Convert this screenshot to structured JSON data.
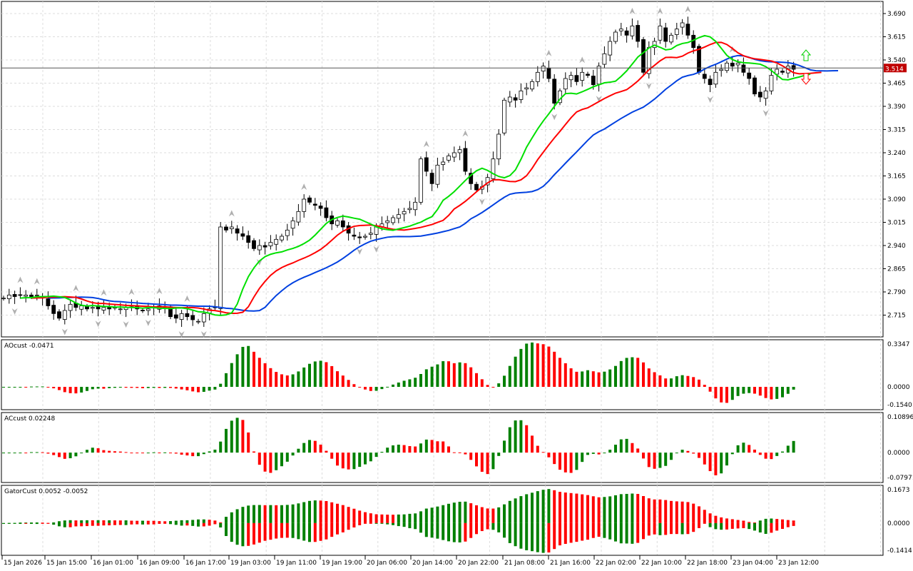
{
  "chart_data": {
    "type": "candlestick",
    "current_price": "3.514",
    "price_axis": [
      "3.690",
      "3.615",
      "3.540",
      "3.465",
      "3.390",
      "3.315",
      "3.240",
      "3.165",
      "3.090",
      "3.015",
      "2.940",
      "2.865",
      "2.790",
      "2.715"
    ],
    "price_range": [
      2.6775,
      3.7275
    ],
    "time_labels": [
      "15 Jan 2026",
      "15 Jan 15:00",
      "16 Jan 01:00",
      "16 Jan 09:00",
      "16 Jan 17:00",
      "19 Jan 03:00",
      "19 Jan 11:00",
      "19 Jan 19:00",
      "20 Jan 06:00",
      "20 Jan 14:00",
      "20 Jan 22:00",
      "21 Jan 08:00",
      "21 Jan 16:00",
      "22 Jan 02:00",
      "22 Jan 10:00",
      "22 Jan 18:00",
      "23 Jan 04:00",
      "23 Jan 12:00"
    ],
    "closes": [
      2.77,
      2.78,
      2.775,
      2.78,
      2.78,
      2.775,
      2.78,
      2.77,
      2.745,
      2.72,
      2.705,
      2.73,
      2.75,
      2.74,
      2.745,
      2.735,
      2.74,
      2.735,
      2.74,
      2.735,
      2.74,
      2.735,
      2.74,
      2.74,
      2.735,
      2.73,
      2.735,
      2.74,
      2.745,
      2.74,
      2.71,
      2.705,
      2.72,
      2.71,
      2.7,
      2.695,
      2.72,
      2.735,
      2.74,
      3.0,
      2.99,
      3.0,
      2.98,
      2.97,
      2.95,
      2.93,
      2.94,
      2.935,
      2.95,
      2.96,
      2.97,
      2.99,
      3.02,
      3.05,
      3.09,
      3.08,
      3.07,
      3.06,
      3.03,
      3.01,
      3.02,
      3.0,
      2.98,
      2.97,
      2.965,
      2.97,
      2.98,
      3.0,
      3.01,
      3.02,
      3.03,
      3.04,
      3.05,
      3.06,
      3.08,
      3.22,
      3.18,
      3.14,
      3.2,
      3.21,
      3.23,
      3.24,
      3.25,
      3.18,
      3.14,
      3.12,
      3.13,
      3.16,
      3.22,
      3.3,
      3.41,
      3.42,
      3.41,
      3.44,
      3.45,
      3.47,
      3.5,
      3.52,
      3.48,
      3.4,
      3.44,
      3.48,
      3.49,
      3.47,
      3.5,
      3.49,
      3.46,
      3.52,
      3.56,
      3.6,
      3.63,
      3.64,
      3.62,
      3.65,
      3.6,
      3.5,
      3.58,
      3.6,
      3.65,
      3.6,
      3.62,
      3.64,
      3.66,
      3.62,
      3.58,
      3.5,
      3.48,
      3.46,
      3.5,
      3.51,
      3.53,
      3.52,
      3.53,
      3.5,
      3.48,
      3.43,
      3.42,
      3.44,
      3.49,
      3.51,
      3.5,
      3.52,
      3.51
    ],
    "moving_averages": [
      {
        "name": "jaw",
        "color": "#0040e0"
      },
      {
        "name": "teeth",
        "color": "#ff0000"
      },
      {
        "name": "lips",
        "color": "#00e000"
      }
    ],
    "indicators": [
      {
        "label": "AOcust -0.0471",
        "axis": [
          "0.3347",
          "0.0000",
          "-0.1540"
        ],
        "range": [
          -0.154,
          0.3347
        ]
      },
      {
        "label": "ACcust 0.02248",
        "axis": [
          "0.10896",
          "0.0000",
          "-0.07971"
        ],
        "range": [
          -0.07971,
          0.10896
        ]
      },
      {
        "label": "GatorCust 0.0052 -0.0052",
        "axis": [
          "0.1673",
          "0.0000",
          "-0.1414"
        ],
        "range": [
          -0.1414,
          0.1673
        ]
      }
    ],
    "colors": {
      "up": "#008000",
      "down": "#ff0000",
      "price_label": "#c00000"
    }
  }
}
